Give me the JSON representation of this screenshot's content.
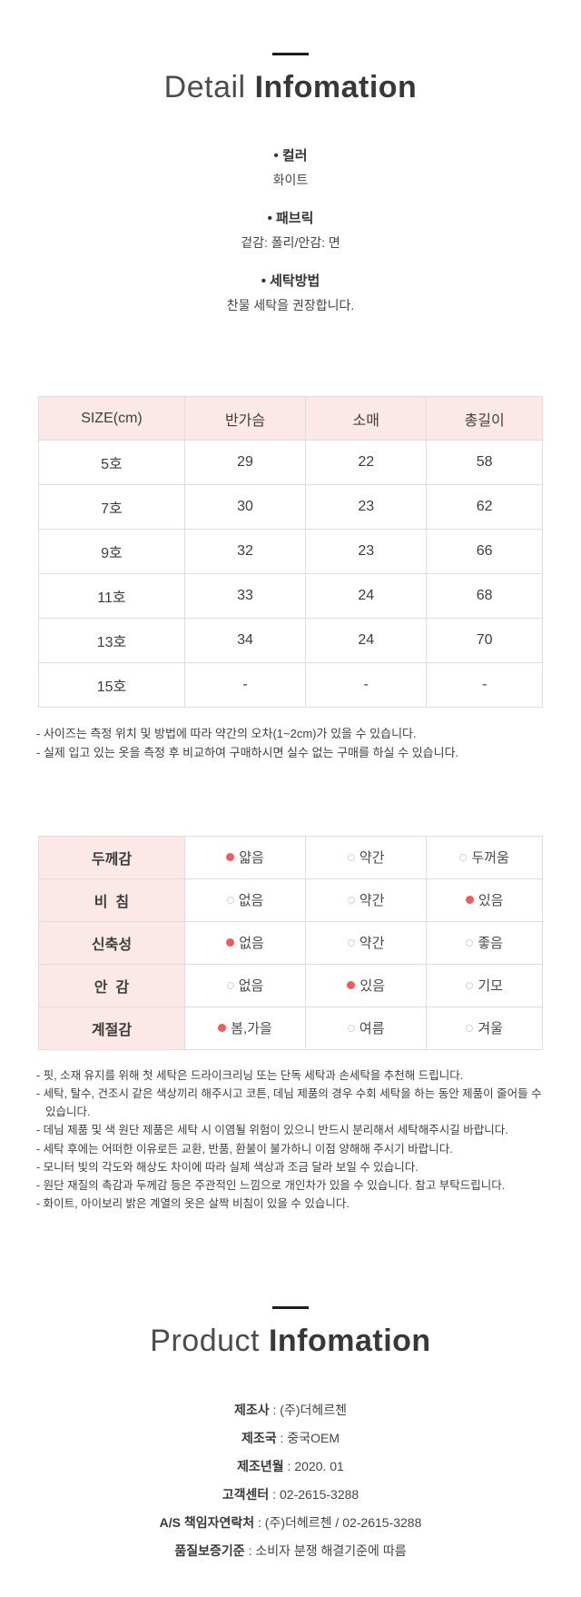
{
  "detail_section": {
    "title_light": "Detail",
    "title_bold": "Infomation",
    "specs": [
      {
        "label": "• 컬러",
        "value": "화이트"
      },
      {
        "label": "• 패브릭",
        "value": "겉감: 폴리/안감: 면"
      },
      {
        "label": "• 세탁방법",
        "value": "찬물 세탁을 권장합니다."
      }
    ]
  },
  "size_table": {
    "headers": [
      "SIZE(cm)",
      "반가슴",
      "소매",
      "총길이"
    ],
    "rows": [
      [
        "5호",
        "29",
        "22",
        "58"
      ],
      [
        "7호",
        "30",
        "23",
        "62"
      ],
      [
        "9호",
        "32",
        "23",
        "66"
      ],
      [
        "11호",
        "33",
        "24",
        "68"
      ],
      [
        "13호",
        "34",
        "24",
        "70"
      ],
      [
        "15호",
        "-",
        "-",
        "-"
      ]
    ]
  },
  "size_notes": [
    "- 사이즈는 측정 위치 및 방법에 따라 약간의 오차(1~2cm)가 있을 수 있습니다.",
    "- 실제 입고 있는 옷을 측정 후 비교하여 구매하시면 실수 없는 구매를 하실 수 있습니다."
  ],
  "attribute_table": {
    "rows": [
      {
        "label": "두께감",
        "options": [
          {
            "text": "얇음",
            "selected": true
          },
          {
            "text": "약간",
            "selected": false
          },
          {
            "text": "두꺼움",
            "selected": false
          }
        ]
      },
      {
        "label": "비  침",
        "options": [
          {
            "text": "없음",
            "selected": false
          },
          {
            "text": "약간",
            "selected": false
          },
          {
            "text": "있음",
            "selected": true
          }
        ]
      },
      {
        "label": "신축성",
        "options": [
          {
            "text": "없음",
            "selected": true
          },
          {
            "text": "약간",
            "selected": false
          },
          {
            "text": "좋음",
            "selected": false
          }
        ]
      },
      {
        "label": "안  감",
        "options": [
          {
            "text": "없음",
            "selected": false
          },
          {
            "text": "있음",
            "selected": true
          },
          {
            "text": "기모",
            "selected": false
          }
        ]
      },
      {
        "label": "계절감",
        "options": [
          {
            "text": "봄,가을",
            "selected": true
          },
          {
            "text": "여름",
            "selected": false
          },
          {
            "text": "겨울",
            "selected": false
          }
        ]
      }
    ]
  },
  "care_notes": [
    "- 핏, 소재 유지를 위해 첫 세탁은 드라이크리닝 또는 단독 세탁과 손세탁을 추천해 드립니다.",
    "- 세탁, 탈수, 건조시 같은 색상끼리 해주시고 코튼, 데님 제품의 경우 수회 세탁을 하는 동안 제품이 줄어들 수 있습니다.",
    "- 데님 제품 및 색 원단 제품은 세탁 시 이염될 위험이 있으니 반드시 분리해서 세탁해주시길 바랍니다.",
    "- 세탁 후에는 어떠한 이유로든 교환, 반품, 환불이 불가하니 이점 양해해 주시기 바랍니다.",
    "- 모니터 빛의 각도와 해상도 차이에 따라 실제 색상과 조금 달라 보일 수 있습니다.",
    "- 원단 재질의 촉감과 두께감 등은 주관적인 느낌으로 개인차가 있을 수 있습니다. 참고 부탁드립니다.",
    "- 화이트, 아이보리 밝은 계열의 옷은 살짝 비침이 있을 수 있습니다."
  ],
  "product_section": {
    "title_light": "Product",
    "title_bold": "Infomation",
    "separator": " : ",
    "info": [
      {
        "label": "제조사",
        "value": "(주)더헤르첸"
      },
      {
        "label": "제조국",
        "value": "중국OEM"
      },
      {
        "label": "제조년월",
        "value": "2020. 01"
      },
      {
        "label": "고객센터",
        "value": "02-2615-3288"
      },
      {
        "label": "A/S 책임자연락처",
        "value": "(주)더헤르첸 / 02-2615-3288"
      },
      {
        "label": "품질보증기준",
        "value": "소비자 분쟁 해결기준에 따름"
      }
    ]
  },
  "colors": {
    "header_pink": "#fce9e7",
    "dot_red": "#f15b5b",
    "border_gray": "#dddddd",
    "title_dark": "#383838"
  }
}
